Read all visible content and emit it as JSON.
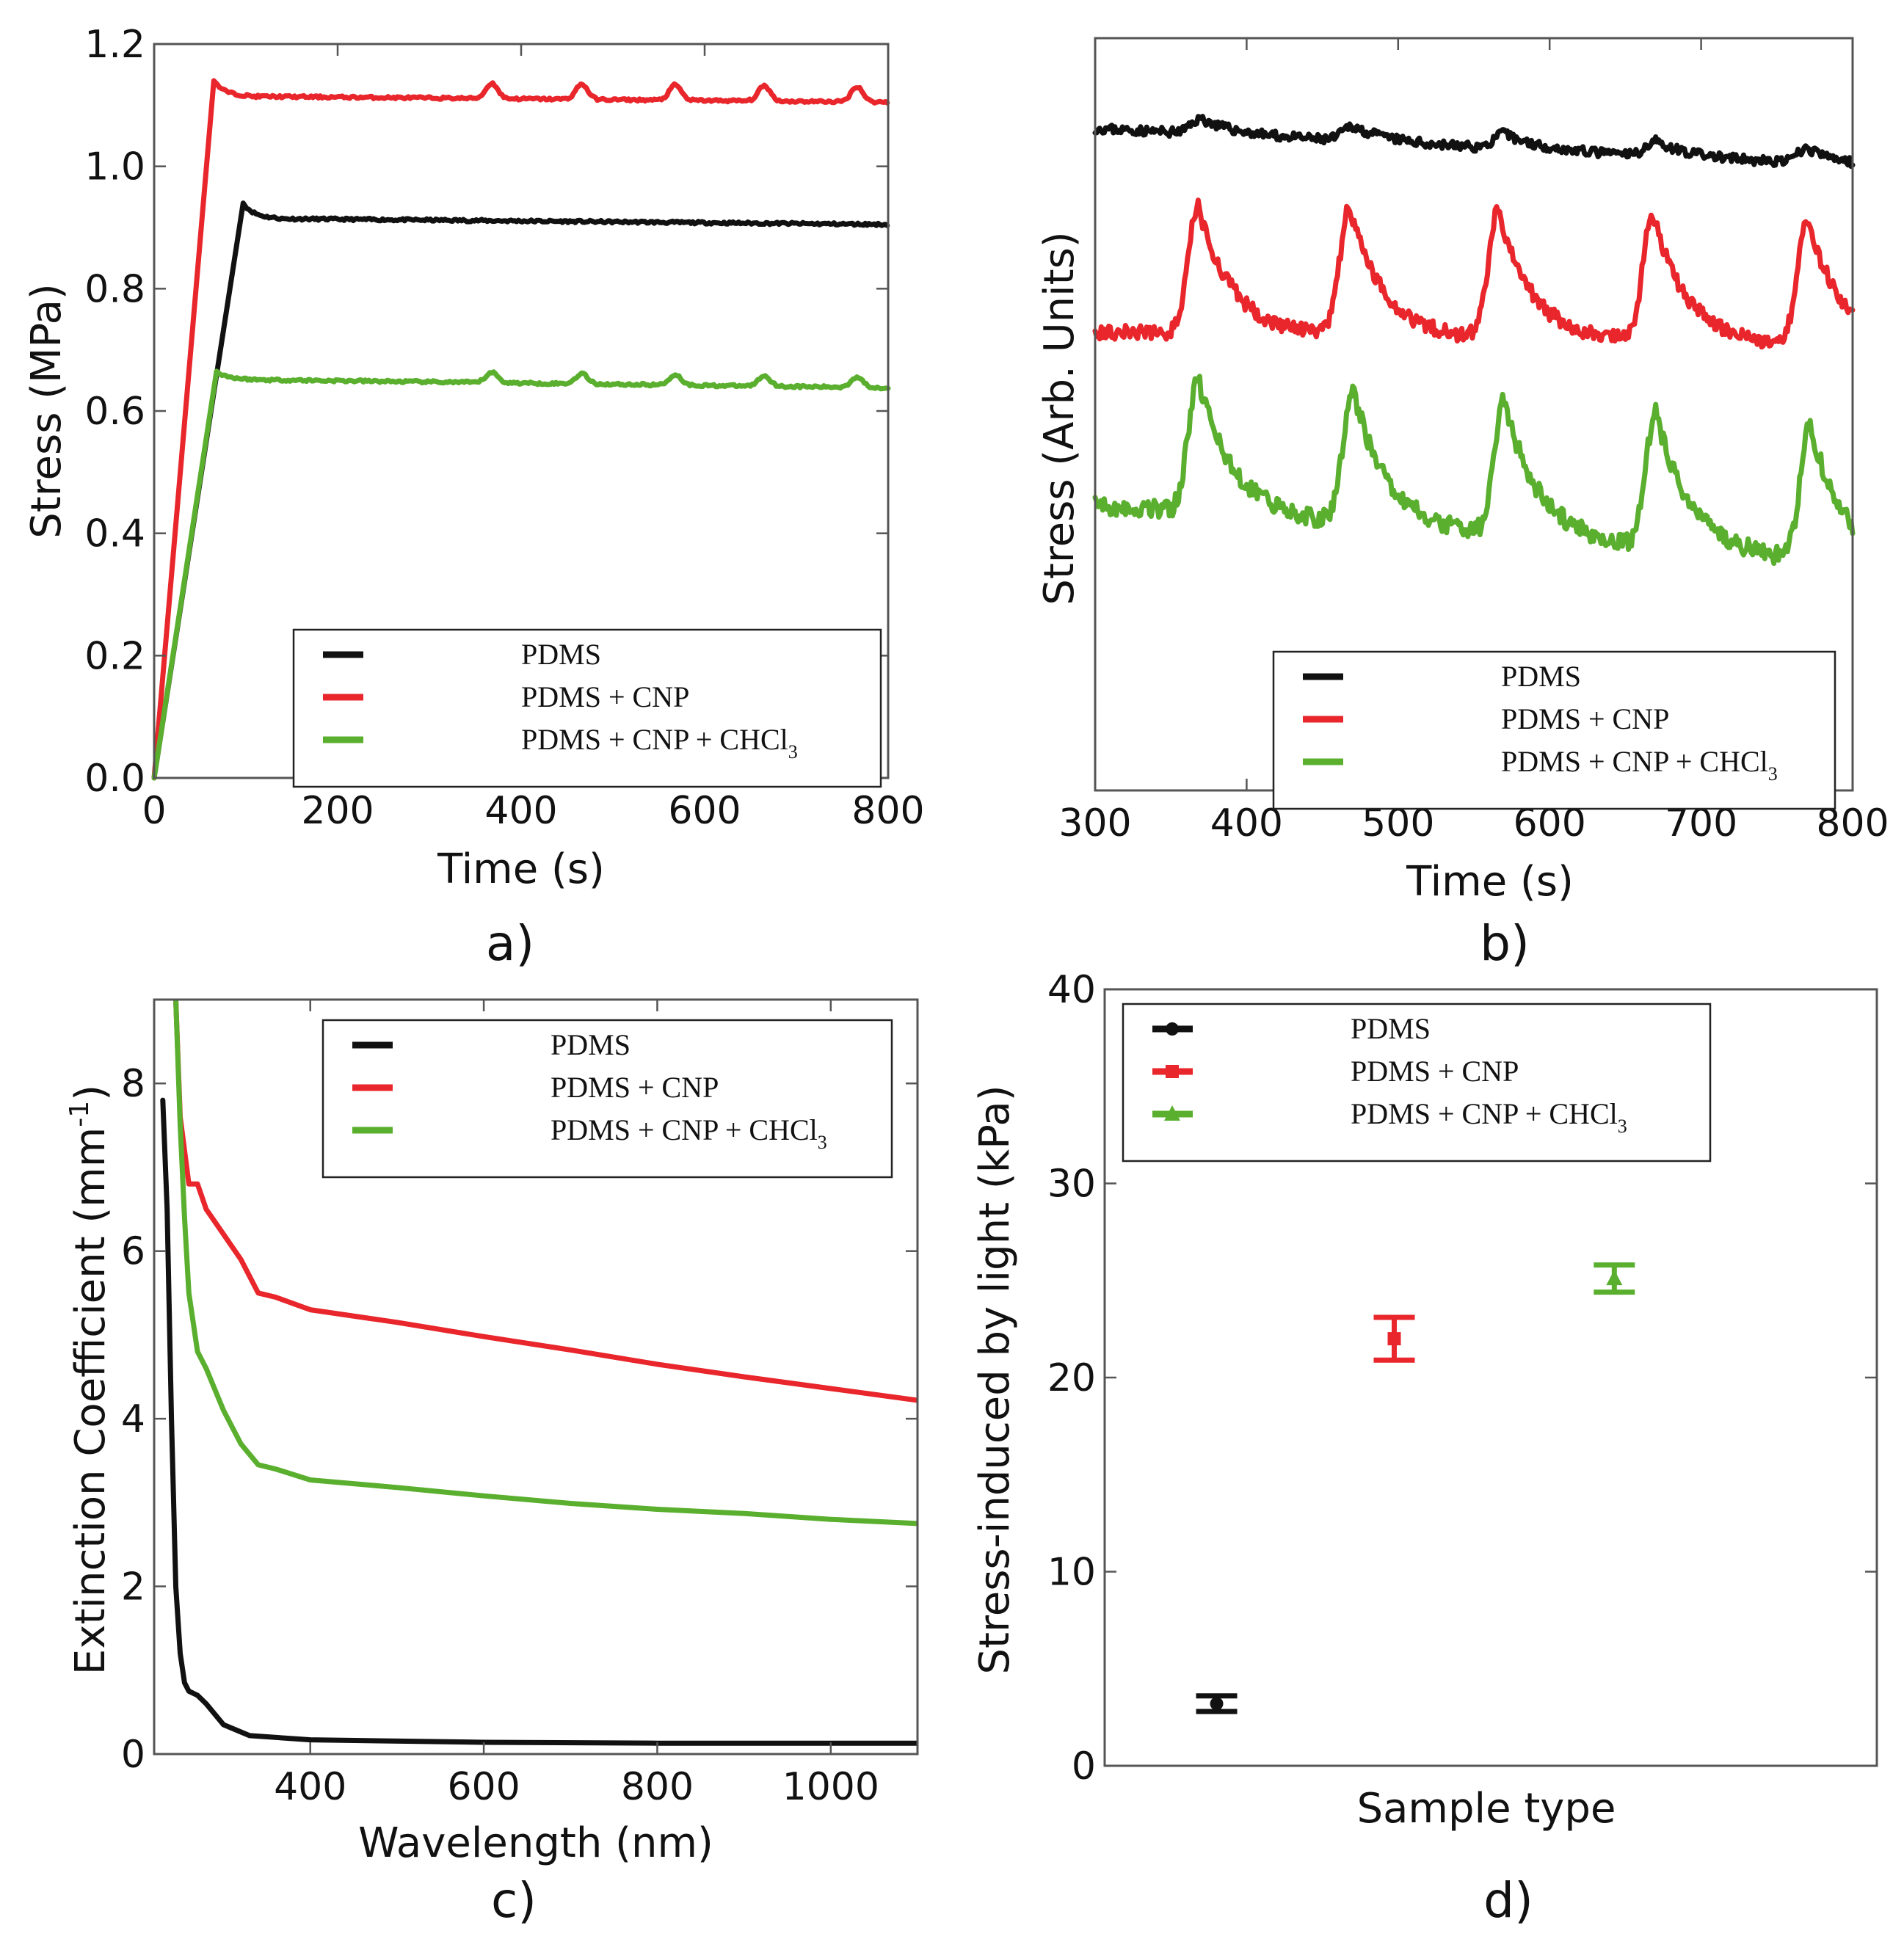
{
  "colors": {
    "PDMS": "#111111",
    "PDMS + CNP": "#e8262b",
    "PDMS + CNP + CHCl3": "#5aaf2e"
  },
  "legend": {
    "entries": [
      {
        "key": "PDMS",
        "label": "PDMS"
      },
      {
        "key": "PDMS + CNP",
        "label": "PDMS + CNP"
      },
      {
        "key": "PDMS + CNP + CHCl3",
        "label_main": "PDMS + CNP + CHCl",
        "label_sub": "3"
      }
    ]
  },
  "chart_data": [
    {
      "id": "a",
      "panel_label": "a)",
      "type": "line",
      "xlabel": "Time (s)",
      "ylabel": "Stress (MPa)",
      "xlim": [
        0,
        800
      ],
      "ylim": [
        0,
        1.2
      ],
      "xticks": [
        "0",
        "200",
        "400",
        "600",
        "800"
      ],
      "yticks": [
        "0.0",
        "0.2",
        "0.4",
        "0.6",
        "0.8",
        "1.0",
        "1.2"
      ],
      "legend_position": "bottom-right",
      "series": [
        {
          "name": "PDMS",
          "ramp_end": [
            97,
            0.94
          ],
          "plateau": 0.915,
          "plateau_end": 0.905,
          "peak_times": [],
          "peak_height": 0.0
        },
        {
          "name": "PDMS + CNP",
          "ramp_end": [
            65,
            1.14
          ],
          "plateau": 1.115,
          "plateau_end": 1.105,
          "peak_times": [
            368,
            466,
            568,
            665,
            766
          ],
          "peak_height": 0.025
        },
        {
          "name": "PDMS + CNP + CHCl3",
          "ramp_end": [
            68,
            0.665
          ],
          "plateau": 0.652,
          "plateau_end": 0.638,
          "peak_times": [
            368,
            466,
            568,
            665,
            766
          ],
          "peak_height": 0.017
        }
      ]
    },
    {
      "id": "b",
      "panel_label": "b)",
      "type": "line",
      "xlabel": "Time (s)",
      "ylabel": "Stress (Arb. Units)",
      "xlim": [
        300,
        800
      ],
      "ylim": [
        0,
        1
      ],
      "xticks": [
        "300",
        "400",
        "500",
        "600",
        "700",
        "800"
      ],
      "legend_position": "bottom-right",
      "series": [
        {
          "name": "PDMS",
          "base": 0.88,
          "base_end": 0.83,
          "peak_times": [
            370,
            470,
            570,
            670,
            770
          ],
          "peak_height": 0.02,
          "noise": 0.006
        },
        {
          "name": "PDMS + CNP",
          "base": 0.61,
          "base_end": 0.59,
          "peak_times": [
            368,
            468,
            566,
            668,
            770
          ],
          "peak_height": 0.17,
          "noise": 0.01
        },
        {
          "name": "PDMS + CNP + CHCl3",
          "base": 0.38,
          "base_end": 0.3,
          "peak_times": [
            368,
            470,
            570,
            670,
            772
          ],
          "peak_height": 0.18,
          "noise": 0.012
        }
      ]
    },
    {
      "id": "c",
      "panel_label": "c)",
      "type": "line",
      "xlabel": "Wavelength (nm)",
      "ylabel_main": "Extinction Coefficient (mm",
      "ylabel_sup": "-1",
      "ylabel_tail": ")",
      "xlim": [
        220,
        1100
      ],
      "ylim": [
        0,
        9
      ],
      "xticks": [
        "400",
        "600",
        "800",
        "1000"
      ],
      "xtick_values": [
        400,
        600,
        800,
        1000
      ],
      "yticks": [
        "0",
        "2",
        "4",
        "6",
        "8"
      ],
      "ytick_values": [
        0,
        2,
        4,
        6,
        8
      ],
      "legend_position": "top-right",
      "series": [
        {
          "name": "PDMS",
          "x": [
            230,
            235,
            240,
            245,
            250,
            255,
            260,
            270,
            280,
            300,
            330,
            400,
            600,
            800,
            900,
            1000,
            1100
          ],
          "y": [
            7.8,
            6.5,
            4.0,
            2.0,
            1.2,
            0.85,
            0.75,
            0.7,
            0.6,
            0.35,
            0.22,
            0.17,
            0.14,
            0.13,
            0.13,
            0.13,
            0.13
          ]
        },
        {
          "name": "PDMS + CNP",
          "x": [
            245,
            250,
            260,
            270,
            280,
            300,
            320,
            340,
            360,
            400,
            500,
            600,
            700,
            800,
            900,
            1000,
            1100
          ],
          "y": [
            9.0,
            7.6,
            6.8,
            6.8,
            6.5,
            6.2,
            5.9,
            5.5,
            5.45,
            5.3,
            5.15,
            4.98,
            4.82,
            4.65,
            4.5,
            4.36,
            4.22
          ]
        },
        {
          "name": "PDMS + CNP + CHCl3",
          "x": [
            245,
            250,
            255,
            260,
            270,
            280,
            300,
            320,
            340,
            360,
            400,
            500,
            600,
            700,
            800,
            900,
            1000,
            1100
          ],
          "y": [
            9.0,
            7.5,
            6.4,
            5.5,
            4.8,
            4.6,
            4.1,
            3.7,
            3.45,
            3.4,
            3.27,
            3.18,
            3.08,
            2.99,
            2.92,
            2.87,
            2.8,
            2.75
          ]
        }
      ]
    },
    {
      "id": "d",
      "panel_label": "d)",
      "type": "scatter",
      "xlabel": "Sample type",
      "ylabel": "Stress-induced by light (kPa)",
      "ylim": [
        0,
        40
      ],
      "yticks": [
        "0",
        "10",
        "20",
        "30",
        "40"
      ],
      "ytick_values": [
        0,
        10,
        20,
        30,
        40
      ],
      "legend_position": "top-left",
      "points": [
        {
          "name": "PDMS",
          "value": 3.2,
          "error": 0.4,
          "marker": "circle"
        },
        {
          "name": "PDMS + CNP",
          "value": 22.0,
          "error": 1.1,
          "marker": "square"
        },
        {
          "name": "PDMS + CNP + CHCl3",
          "value": 25.1,
          "error": 0.7,
          "marker": "triangle"
        }
      ]
    }
  ]
}
